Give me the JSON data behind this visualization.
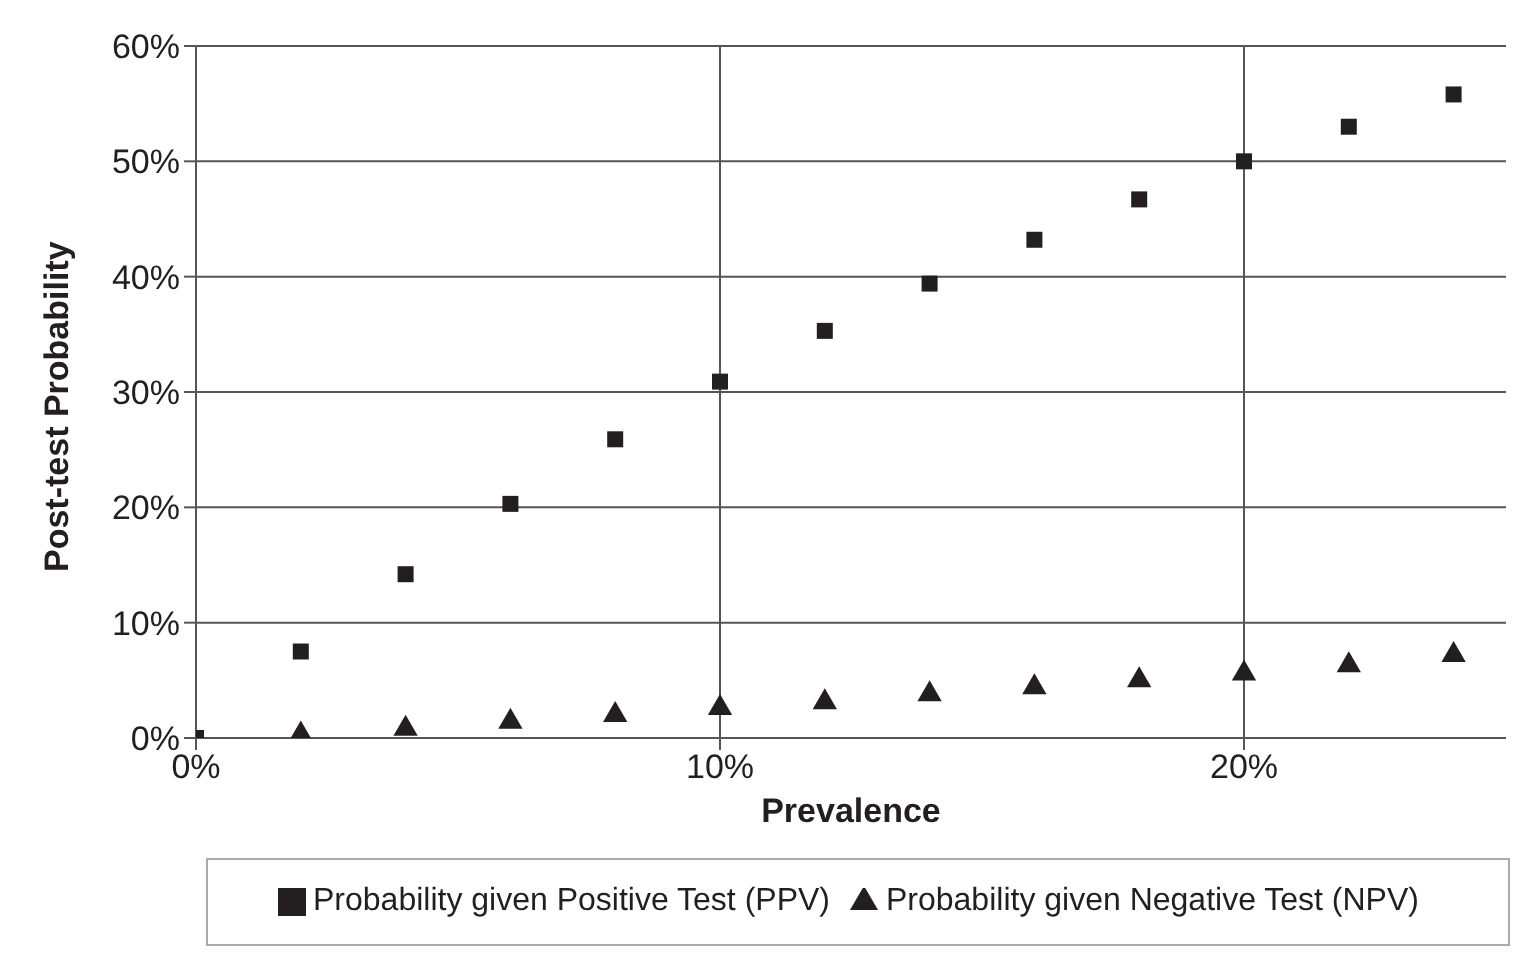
{
  "chart_data": {
    "type": "scatter",
    "xlabel": "Prevalence",
    "ylabel": "Post-test Probability",
    "x": [
      0,
      2,
      4,
      6,
      8,
      10,
      12,
      14,
      16,
      18,
      20,
      22,
      24
    ],
    "series": [
      {
        "name": "Probability given Positive Test (PPV)",
        "color": "#231f20",
        "marker": "square",
        "values": [
          0,
          7.5,
          14.2,
          20.3,
          25.9,
          30.9,
          35.3,
          39.4,
          43.2,
          46.7,
          50,
          53,
          55.8
        ]
      },
      {
        "name": "Probability given Negative Test (NPV)",
        "color": "#231f20",
        "marker": "triangle",
        "values": [
          null,
          0.3,
          0.8,
          1.4,
          2,
          2.6,
          3.1,
          3.8,
          4.4,
          5,
          5.6,
          6.3,
          7.2
        ]
      }
    ],
    "xlim": [
      0,
      25
    ],
    "xticks": [
      {
        "value": 0,
        "label": "0%"
      },
      {
        "value": 10,
        "label": "10%"
      },
      {
        "value": 20,
        "label": "20%"
      }
    ],
    "ylim": [
      0,
      60
    ],
    "yticks": [
      {
        "value": 0,
        "label": "0%"
      },
      {
        "value": 10,
        "label": "10%"
      },
      {
        "value": 20,
        "label": "20%"
      },
      {
        "value": 30,
        "label": "30%"
      },
      {
        "value": 40,
        "label": "40%"
      },
      {
        "value": 50,
        "label": "50%"
      },
      {
        "value": 60,
        "label": "60%"
      }
    ],
    "grid": true,
    "legend": "bottom"
  }
}
